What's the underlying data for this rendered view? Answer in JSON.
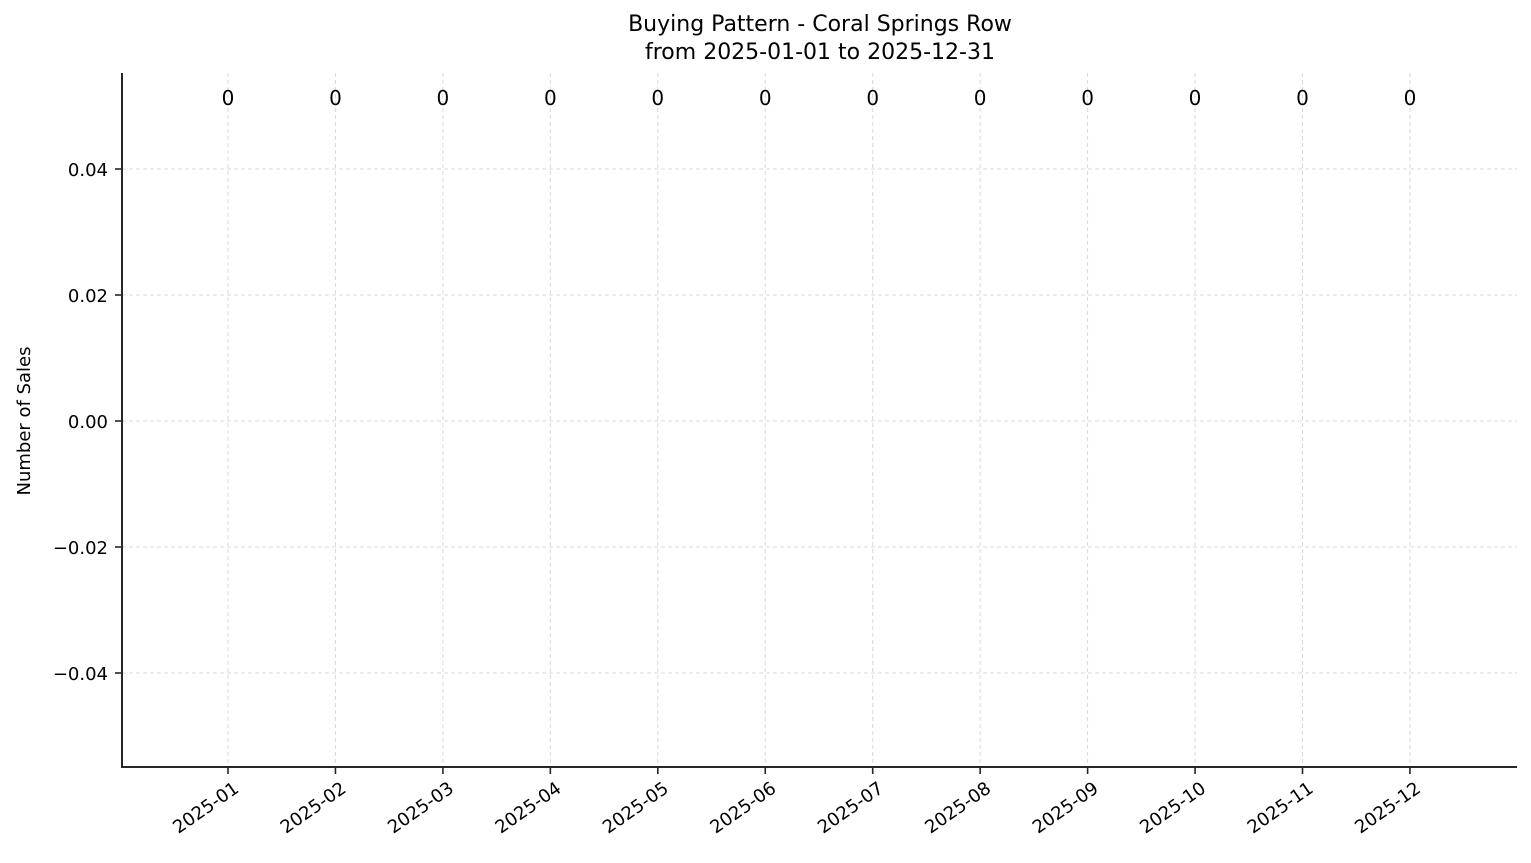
{
  "chart_data": {
    "type": "bar",
    "title": "Buying Pattern - Coral Springs Row",
    "subtitle": "from 2025-01-01 to 2025-12-31",
    "xlabel": "",
    "ylabel": "Number of Sales",
    "categories": [
      "2025-01",
      "2025-02",
      "2025-03",
      "2025-04",
      "2025-05",
      "2025-06",
      "2025-07",
      "2025-08",
      "2025-09",
      "2025-10",
      "2025-11",
      "2025-12"
    ],
    "values": [
      0,
      0,
      0,
      0,
      0,
      0,
      0,
      0,
      0,
      0,
      0,
      0
    ],
    "data_labels": [
      "0",
      "0",
      "0",
      "0",
      "0",
      "0",
      "0",
      "0",
      "0",
      "0",
      "0",
      "0"
    ],
    "yticks": [
      0.04,
      0.02,
      0.0,
      -0.02,
      -0.04
    ],
    "ytick_labels": [
      "0.04",
      "0.02",
      "0.00",
      "−0.02",
      "−0.04"
    ],
    "ylim": [
      -0.055,
      0.055
    ],
    "grid": true,
    "grid_style": "dashed",
    "legend": null,
    "x_tick_rotation": 35
  },
  "colors": {
    "axis": "#262626",
    "grid": "#d9d9d9",
    "text": "#000000",
    "background": "#ffffff"
  }
}
